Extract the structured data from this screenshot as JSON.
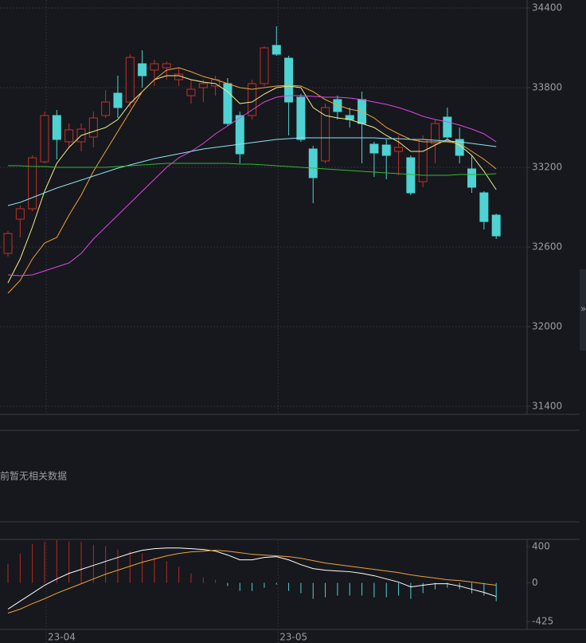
{
  "chart_data": [
    {
      "type": "candlestick",
      "categories": [
        null,
        null,
        null,
        "23-04",
        null,
        null,
        null,
        null,
        null,
        null,
        null,
        null,
        null,
        null,
        null,
        null,
        null,
        null,
        null,
        null,
        null,
        null,
        "23-05",
        null,
        null,
        null,
        null,
        null,
        null,
        null,
        null,
        null,
        null,
        null,
        null,
        null,
        null,
        null,
        null,
        null,
        null
      ],
      "open": [
        32552,
        32810,
        32888,
        33242,
        33590,
        33392,
        33392,
        33428,
        33590,
        33758,
        33692,
        33980,
        33932,
        33950,
        33860,
        33740,
        33800,
        33812,
        33830,
        33590,
        33590,
        33830,
        34118,
        34022,
        33728,
        33338,
        33248,
        33710,
        33590,
        33710,
        33374,
        33368,
        33320,
        33272,
        33092,
        33380,
        33578,
        33410,
        33188,
        33008,
        32840
      ],
      "high": [
        32720,
        32912,
        33290,
        33620,
        33632,
        33530,
        33530,
        33620,
        33782,
        33890,
        34052,
        34082,
        34010,
        33998,
        33950,
        33860,
        33860,
        33890,
        33872,
        33620,
        33860,
        34112,
        34262,
        34040,
        33752,
        33362,
        33680,
        33740,
        33650,
        33770,
        33392,
        33410,
        33440,
        33290,
        33440,
        33560,
        33650,
        33500,
        33290,
        33020,
        32852
      ],
      "low": [
        32528,
        32672,
        32870,
        33230,
        33260,
        33350,
        33320,
        33350,
        33572,
        33572,
        33650,
        33800,
        33812,
        33860,
        33812,
        33680,
        33692,
        33740,
        33512,
        33230,
        33560,
        33812,
        34040,
        33440,
        33392,
        32930,
        33230,
        33560,
        33500,
        33230,
        33128,
        33110,
        33140,
        32990,
        33050,
        33230,
        33410,
        33230,
        33008,
        32732,
        32660
      ],
      "close": [
        32702,
        32888,
        33272,
        33590,
        33410,
        33482,
        33488,
        33572,
        33692,
        33650,
        34028,
        33890,
        33980,
        33980,
        33902,
        33788,
        33830,
        33860,
        33530,
        33302,
        33830,
        34100,
        34052,
        33692,
        33410,
        33122,
        33650,
        33620,
        33560,
        33530,
        33308,
        33290,
        33350,
        33008,
        33410,
        33530,
        33428,
        33290,
        33050,
        32792,
        32684
      ],
      "up_color": "#c4302b",
      "down_color": "#4fd2d2",
      "lines": [
        {
          "color": "#f3ee8c",
          "values": [
            32330,
            32510,
            32750,
            33020,
            33230,
            33350,
            33440,
            33470,
            33500,
            33560,
            33680,
            33770,
            33860,
            33890,
            33890,
            33860,
            33842,
            33830,
            33770,
            33680,
            33692,
            33752,
            33800,
            33812,
            33800,
            33650,
            33590,
            33572,
            33560,
            33530,
            33500,
            33440,
            33392,
            33320,
            33320,
            33368,
            33410,
            33368,
            33290,
            33170,
            33032
          ]
        },
        {
          "color": "#f0a23a",
          "values": [
            32252,
            32348,
            32510,
            32630,
            32672,
            32840,
            32990,
            33170,
            33320,
            33470,
            33620,
            33770,
            33860,
            33932,
            33950,
            33920,
            33884,
            33860,
            33830,
            33800,
            33788,
            33800,
            33812,
            33818,
            33812,
            33770,
            33710,
            33668,
            33638,
            33620,
            33572,
            33500,
            33452,
            33410,
            33392,
            33392,
            33392,
            33380,
            33320,
            33260,
            33188
          ]
        },
        {
          "color": "#e244e2",
          "values": [
            32390,
            32384,
            32390,
            32420,
            32450,
            32480,
            32552,
            32660,
            32750,
            32840,
            32930,
            33020,
            33110,
            33200,
            33272,
            33320,
            33380,
            33452,
            33512,
            33572,
            33632,
            33692,
            33728,
            33740,
            33740,
            33734,
            33728,
            33728,
            33722,
            33710,
            33692,
            33674,
            33650,
            33620,
            33584,
            33560,
            33542,
            33518,
            33488,
            33452,
            33392
          ]
        },
        {
          "color": "#8ce4f2",
          "values": [
            32912,
            32936,
            32972,
            33008,
            33044,
            33074,
            33104,
            33134,
            33164,
            33194,
            33218,
            33242,
            33266,
            33284,
            33302,
            33320,
            33338,
            33350,
            33362,
            33374,
            33386,
            33398,
            33410,
            33416,
            33422,
            33422,
            33422,
            33422,
            33422,
            33422,
            33422,
            33416,
            33416,
            33410,
            33410,
            33404,
            33398,
            33392,
            33380,
            33368,
            33356
          ]
        },
        {
          "color": "#33b833",
          "values": [
            33212,
            33212,
            33206,
            33206,
            33200,
            33200,
            33200,
            33200,
            33200,
            33206,
            33212,
            33218,
            33224,
            33230,
            33230,
            33230,
            33230,
            33230,
            33230,
            33224,
            33224,
            33218,
            33212,
            33206,
            33200,
            33194,
            33188,
            33182,
            33176,
            33170,
            33164,
            33158,
            33152,
            33146,
            33140,
            33140,
            33140,
            33146,
            33146,
            33146,
            33152
          ]
        }
      ],
      "ylim": [
        31400,
        34400
      ],
      "yticks": [
        34400,
        33800,
        33200,
        32600,
        32000,
        31400
      ],
      "grid": true
    },
    {
      "type": "macd",
      "histogram": [
        210,
        324,
        429,
        455,
        473,
        455,
        455,
        420,
        403,
        368,
        350,
        324,
        280,
        236,
        175,
        105,
        61,
        35,
        -35,
        -88,
        -88,
        -53,
        -18,
        -88,
        -114,
        -175,
        -158,
        -140,
        -140,
        -140,
        -158,
        -158,
        -140,
        -175,
        -114,
        -70,
        -53,
        -70,
        -114,
        -140,
        -201
      ],
      "up_color": "#b82727",
      "down_color": "#4fd2d2",
      "lines": [
        {
          "color": "#ffffff",
          "values": [
            -289,
            -201,
            -114,
            -26,
            44,
            105,
            149,
            193,
            237,
            280,
            324,
            359,
            377,
            385,
            385,
            377,
            368,
            350,
            307,
            254,
            254,
            280,
            289,
            254,
            201,
            158,
            140,
            131,
            123,
            105,
            79,
            44,
            9,
            -44,
            -26,
            -9,
            -9,
            -35,
            -70,
            -105,
            -149
          ]
        },
        {
          "color": "#f0a23a",
          "values": [
            -333,
            -289,
            -228,
            -175,
            -114,
            -61,
            -9,
            44,
            96,
            140,
            184,
            228,
            263,
            298,
            324,
            342,
            350,
            359,
            350,
            333,
            315,
            307,
            298,
            289,
            272,
            245,
            219,
            201,
            184,
            166,
            149,
            131,
            114,
            88,
            70,
            53,
            35,
            26,
            9,
            -9,
            -26
          ]
        }
      ],
      "ylim": [
        -425,
        400
      ],
      "yticks": [
        400,
        0,
        -425
      ]
    }
  ],
  "notice": "前暂无相关数据",
  "collapse_icon": "»"
}
